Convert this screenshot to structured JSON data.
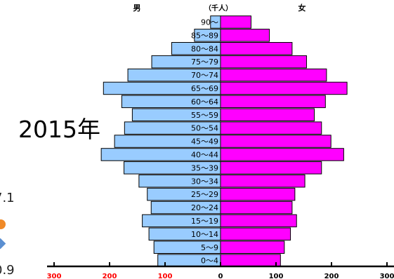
{
  "year_label": "2015年",
  "side_notes": {
    "upper": "7.1",
    "lower": "0.9"
  },
  "colors": {
    "male": "#99ccff",
    "female": "#ff00ff",
    "axis_negative": "#ff0000",
    "axis_positive": "#000000",
    "marker_dot": "#f08a28",
    "marker_diamond": "#5b8fd1"
  },
  "chart_data": {
    "type": "bar",
    "title": "",
    "unit": "（千人）",
    "male_label": "男",
    "female_label": "女",
    "xlim": [
      -300,
      300
    ],
    "xticks": [
      {
        "value": -300,
        "label": "300"
      },
      {
        "value": -200,
        "label": "200"
      },
      {
        "value": -100,
        "label": "100"
      },
      {
        "value": 0,
        "label": "0"
      },
      {
        "value": 100,
        "label": "100"
      },
      {
        "value": 200,
        "label": "200"
      },
      {
        "value": 300,
        "label": "300"
      }
    ],
    "categories": [
      "0～4",
      "5～9",
      "10～14",
      "15～19",
      "20～24",
      "25～29",
      "30～34",
      "35～39",
      "40～44",
      "45～49",
      "50～54",
      "55～59",
      "60～64",
      "65～69",
      "70～74",
      "75～79",
      "80～84",
      "85～89",
      "90～"
    ],
    "series": [
      {
        "name": "男",
        "values": [
          113,
          120,
          129,
          141,
          125,
          132,
          147,
          174,
          215,
          191,
          173,
          159,
          178,
          211,
          167,
          124,
          88,
          47,
          18
        ]
      },
      {
        "name": "女",
        "values": [
          108,
          115,
          126,
          137,
          129,
          134,
          152,
          182,
          222,
          199,
          182,
          169,
          189,
          228,
          191,
          155,
          129,
          88,
          55
        ]
      }
    ]
  }
}
